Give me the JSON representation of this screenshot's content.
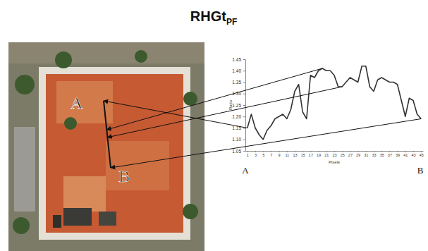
{
  "chart_data": {
    "type": "line",
    "title": {
      "text": "RHGt",
      "subscript": "PF"
    },
    "x_label": "Pixels",
    "y_label": "Ratio",
    "annotations": {
      "start": "A",
      "end": "B"
    },
    "x": [
      1,
      2,
      3,
      4,
      5,
      6,
      7,
      8,
      9,
      10,
      11,
      12,
      13,
      14,
      15,
      16,
      17,
      18,
      19,
      20,
      21,
      22,
      23,
      24,
      25,
      26,
      27,
      28,
      29,
      30,
      31,
      32,
      33,
      34,
      35,
      36,
      37,
      38,
      39,
      40,
      41,
      42,
      43,
      44,
      45
    ],
    "values": [
      1.15,
      1.21,
      1.15,
      1.12,
      1.1,
      1.14,
      1.16,
      1.19,
      1.2,
      1.21,
      1.19,
      1.23,
      1.31,
      1.34,
      1.22,
      1.19,
      1.38,
      1.37,
      1.4,
      1.41,
      1.4,
      1.4,
      1.38,
      1.33,
      1.33,
      1.35,
      1.37,
      1.36,
      1.35,
      1.42,
      1.42,
      1.33,
      1.31,
      1.36,
      1.37,
      1.36,
      1.35,
      1.35,
      1.34,
      1.27,
      1.2,
      1.28,
      1.27,
      1.21,
      1.19
    ],
    "color": "#333333",
    "xlim": [
      0.5,
      45.5
    ],
    "xticks": [
      1,
      3,
      5,
      7,
      9,
      11,
      13,
      15,
      17,
      19,
      21,
      23,
      25,
      27,
      29,
      31,
      33,
      35,
      37,
      39,
      41,
      43,
      45
    ],
    "ylim": [
      1.05,
      1.45
    ],
    "yticks": [
      1.05,
      {
        "value": 1.1,
        "label": "1.10"
      },
      1.15,
      {
        "value": 1.2,
        "label": "1.20"
      },
      1.25,
      {
        "value": 1.3,
        "label": "1.30"
      },
      1.35,
      {
        "value": 1.4,
        "label": "1.40"
      },
      1.45
    ],
    "grid": false
  }
}
